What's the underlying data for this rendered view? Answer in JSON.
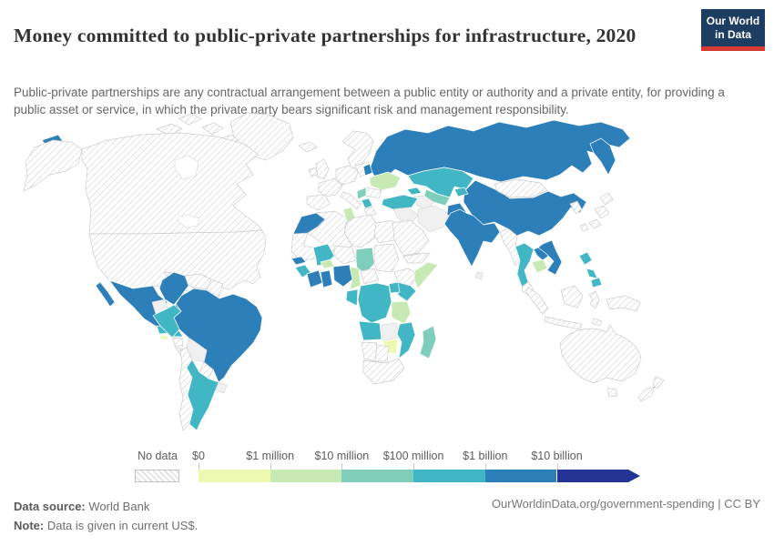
{
  "header": {
    "title": "Money committed to public-private partnerships for infrastructure, 2020",
    "subtitle": "Public-private partnerships are any contractual arrangement between a public entity or authority and a private entity, for providing a public asset or service, in which the private party bears significant risk and management responsibility.",
    "logo": {
      "line1": "Our World",
      "line2": "in Data",
      "bg_color": "#1d3d63",
      "accent_color": "#d73a33"
    }
  },
  "legend": {
    "no_data_label": "No data"
  },
  "footer": {
    "source_label": "Data source:",
    "source_value": " World Bank",
    "note_label": "Note:",
    "note_value": " Data is given in current US$.",
    "link": "OurWorldinData.org/government-spending | CC BY"
  },
  "chart_data": {
    "type": "heatmap",
    "subtype": "choropleth_world_map",
    "title": "Money committed to public-private partnerships for infrastructure, 2020",
    "unit": "current US$",
    "data_source": "World Bank",
    "note": "Data is given in current US$.",
    "legend_position": "bottom",
    "color_scale": {
      "no_data": {
        "label": "No data",
        "style": "hatched"
      },
      "stops": [
        {
          "label": "$0",
          "color": "#edf8b1"
        },
        {
          "label": "$1 million",
          "color": "#c7e9b4"
        },
        {
          "label": "$10 million",
          "color": "#7fcdbb"
        },
        {
          "label": "$100 million",
          "color": "#41b6c4"
        },
        {
          "label": "$1 billion",
          "color": "#2c7fb8"
        },
        {
          "label": "$10 billion",
          "color": "#253494"
        }
      ]
    },
    "countries": [
      {
        "id": "russia",
        "label": "Russia",
        "band": "$1 billion – $10 billion",
        "color": "#2c7fb8"
      },
      {
        "id": "china",
        "label": "China",
        "band": "$1 billion – $10 billion",
        "color": "#2c7fb8"
      },
      {
        "id": "india",
        "label": "India & Pakistan",
        "band": "$1 billion – $10 billion",
        "color": "#2c7fb8"
      },
      {
        "id": "afghanistan",
        "label": "Afghanistan",
        "band": "$1 billion – $10 billion",
        "color": "#2c7fb8"
      },
      {
        "id": "brazil",
        "label": "Brazil",
        "band": "$1 billion – $10 billion",
        "color": "#2c7fb8"
      },
      {
        "id": "colombia",
        "label": "Colombia",
        "band": "$1 billion – $10 billion",
        "color": "#2c7fb8"
      },
      {
        "id": "mexico",
        "label": "Mexico",
        "band": "$1 billion – $10 billion",
        "color": "#2c7fb8"
      },
      {
        "id": "vietnam",
        "label": "Vietnam",
        "band": "$1 billion – $10 billion",
        "color": "#2c7fb8"
      },
      {
        "id": "laos",
        "label": "Laos",
        "band": "$1 billion – $10 billion",
        "color": "#2c7fb8"
      },
      {
        "id": "belarus",
        "label": "Belarus",
        "band": "$1 billion – $10 billion",
        "color": "#2c7fb8"
      },
      {
        "id": "morocco",
        "label": "Morocco",
        "band": "$1 billion – $10 billion",
        "color": "#2c7fb8"
      },
      {
        "id": "senegal",
        "label": "Senegal",
        "band": "$1 billion – $10 billion",
        "color": "#2c7fb8"
      },
      {
        "id": "cote-divoire",
        "label": "Côte d'Ivoire",
        "band": "$1 billion – $10 billion",
        "color": "#2c7fb8"
      },
      {
        "id": "ghana",
        "label": "Ghana",
        "band": "$1 billion – $10 billion",
        "color": "#2c7fb8"
      },
      {
        "id": "nigeria",
        "label": "Nigeria",
        "band": "$1 billion – $10 billion",
        "color": "#2c7fb8"
      },
      {
        "id": "kazakhstan",
        "label": "Kazakhstan",
        "band": "$100 million – $1 billion",
        "color": "#41b6c4"
      },
      {
        "id": "turkey",
        "label": "Turkey",
        "band": "$100 million – $1 billion",
        "color": "#41b6c4"
      },
      {
        "id": "georgia",
        "label": "Georgia",
        "band": "$100 million – $1 billion",
        "color": "#41b6c4"
      },
      {
        "id": "kyrgyzstan",
        "label": "Kyrgyzstan & Tajikistan",
        "band": "$100 million – $1 billion",
        "color": "#41b6c4"
      },
      {
        "id": "thailand",
        "label": "Thailand",
        "band": "$100 million – $1 billion",
        "color": "#41b6c4"
      },
      {
        "id": "philippines",
        "label": "Philippines",
        "band": "$100 million – $1 billion",
        "color": "#41b6c4"
      },
      {
        "id": "peru",
        "label": "Peru",
        "band": "$100 million – $1 billion",
        "color": "#41b6c4"
      },
      {
        "id": "argentina",
        "label": "Argentina",
        "band": "$100 million – $1 billion",
        "color": "#41b6c4"
      },
      {
        "id": "guatemala",
        "label": "Guatemala",
        "band": "$100 million – $1 billion",
        "color": "#41b6c4"
      },
      {
        "id": "honduras",
        "label": "Honduras",
        "band": "$100 million – $1 billion",
        "color": "#41b6c4"
      },
      {
        "id": "kenya",
        "label": "Kenya",
        "band": "$100 million – $1 billion",
        "color": "#41b6c4"
      },
      {
        "id": "uganda",
        "label": "Uganda",
        "band": "$100 million – $1 billion",
        "color": "#41b6c4"
      },
      {
        "id": "dr-congo",
        "label": "Democratic Republic of Congo",
        "band": "$100 million – $1 billion",
        "color": "#41b6c4"
      },
      {
        "id": "gabon",
        "label": "Gabon & Congo",
        "band": "$100 million – $1 billion",
        "color": "#41b6c4"
      },
      {
        "id": "angola",
        "label": "Angola",
        "band": "$100 million – $1 billion",
        "color": "#41b6c4"
      },
      {
        "id": "mozambique",
        "label": "Mozambique",
        "band": "$100 million – $1 billion",
        "color": "#41b6c4"
      },
      {
        "id": "mali",
        "label": "Mali",
        "band": "$100 million – $1 billion",
        "color": "#41b6c4"
      },
      {
        "id": "guinea",
        "label": "Guinea",
        "band": "$100 million – $1 billion",
        "color": "#41b6c4"
      },
      {
        "id": "albania",
        "label": "Albania & North Macedonia",
        "band": "$100 million – $1 billion",
        "color": "#41b6c4"
      },
      {
        "id": "madagascar",
        "label": "Madagascar",
        "band": "$10 million – $100 million",
        "color": "#7fcdbb"
      },
      {
        "id": "chad",
        "label": "Chad",
        "band": "$10 million – $100 million",
        "color": "#7fcdbb"
      },
      {
        "id": "uzbekistan",
        "label": "Uzbekistan",
        "band": "$10 million – $100 million",
        "color": "#7fcdbb"
      },
      {
        "id": "serbia",
        "label": "Serbia & Croatia",
        "band": "$10 million – $100 million",
        "color": "#7fcdbb"
      },
      {
        "id": "ukraine",
        "label": "Ukraine",
        "band": "$1 million – $10 million",
        "color": "#c7e9b4"
      },
      {
        "id": "tunisia",
        "label": "Tunisia",
        "band": "$1 million – $10 million",
        "color": "#c7e9b4"
      },
      {
        "id": "cambodia",
        "label": "Cambodia",
        "band": "$1 million – $10 million",
        "color": "#c7e9b4"
      },
      {
        "id": "tanzania",
        "label": "Tanzania",
        "band": "$1 million – $10 million",
        "color": "#c7e9b4"
      },
      {
        "id": "somalia",
        "label": "Somalia",
        "band": "$1 million – $10 million",
        "color": "#c7e9b4"
      },
      {
        "id": "cameroon",
        "label": "Cameroon",
        "band": "$1 million – $10 million",
        "color": "#c7e9b4"
      },
      {
        "id": "burkina-faso",
        "label": "Burkina Faso",
        "band": "$1 million – $10 million",
        "color": "#c7e9b4"
      },
      {
        "id": "zimbabwe",
        "label": "Zimbabwe",
        "band": "$0 – $1 million",
        "color": "#edf8b1"
      },
      {
        "id": "el-salvador",
        "label": "El Salvador",
        "band": "$0 – $1 million",
        "color": "#edf8b1"
      },
      {
        "id": "united-states",
        "label": "United States",
        "band": "No data",
        "color": "hatch"
      },
      {
        "id": "canada",
        "label": "Canada",
        "band": "No data",
        "color": "hatch"
      },
      {
        "id": "greenland",
        "label": "Greenland",
        "band": "No data",
        "color": "hatch"
      },
      {
        "id": "cuba",
        "label": "Cuba",
        "band": "No data",
        "color": "hatch"
      },
      {
        "id": "hispaniola",
        "label": "Haiti & Dominican Republic",
        "band": "No data",
        "color": "hatch"
      },
      {
        "id": "nicaragua",
        "label": "Nicaragua",
        "band": "No data",
        "color": "hatch"
      },
      {
        "id": "panama",
        "label": "Panama",
        "band": "No data",
        "color": "hatch"
      },
      {
        "id": "venezuela",
        "label": "Venezuela",
        "band": "No data",
        "color": "hatch"
      },
      {
        "id": "guyana",
        "label": "Guyanas",
        "band": "No data",
        "color": "hatch"
      },
      {
        "id": "paraguay",
        "label": "Paraguay",
        "band": "No data",
        "color": "hatch"
      },
      {
        "id": "chile",
        "label": "Chile",
        "band": "No data",
        "color": "hatch"
      },
      {
        "id": "iceland",
        "label": "Iceland",
        "band": "No data",
        "color": "hatch"
      },
      {
        "id": "scandinavia",
        "label": "Norway, Sweden & Finland",
        "band": "No data",
        "color": "hatch"
      },
      {
        "id": "united-kingdom",
        "label": "United Kingdom",
        "band": "No data",
        "color": "hatch"
      },
      {
        "id": "ireland",
        "label": "Ireland",
        "band": "No data",
        "color": "hatch"
      },
      {
        "id": "france",
        "label": "France",
        "band": "No data",
        "color": "hatch"
      },
      {
        "id": "iberia",
        "label": "Spain & Portugal",
        "band": "No data",
        "color": "hatch"
      },
      {
        "id": "germany",
        "label": "Germany & Central Europe",
        "band": "No data",
        "color": "hatch"
      },
      {
        "id": "italy",
        "label": "Italy",
        "band": "No data",
        "color": "hatch"
      },
      {
        "id": "poland",
        "label": "Poland & Baltics",
        "band": "No data",
        "color": "hatch"
      },
      {
        "id": "romania",
        "label": "Romania",
        "band": "No data",
        "color": "hatch"
      },
      {
        "id": "greece",
        "label": "Greece",
        "band": "No data",
        "color": "hatch"
      },
      {
        "id": "mongolia",
        "label": "Mongolia",
        "band": "No data",
        "color": "hatch"
      },
      {
        "id": "japan",
        "label": "Japan",
        "band": "No data",
        "color": "hatch"
      },
      {
        "id": "south-korea",
        "label": "South Korea",
        "band": "No data",
        "color": "hatch"
      },
      {
        "id": "taiwan",
        "label": "Taiwan",
        "band": "No data",
        "color": "hatch"
      },
      {
        "id": "myanmar",
        "label": "Myanmar",
        "band": "No data",
        "color": "hatch"
      },
      {
        "id": "malaysia",
        "label": "Malaysia",
        "band": "No data",
        "color": "hatch"
      },
      {
        "id": "indonesia",
        "label": "Indonesia",
        "band": "No data",
        "color": "hatch"
      },
      {
        "id": "new-guinea",
        "label": "New Guinea",
        "band": "No data",
        "color": "hatch"
      },
      {
        "id": "australia",
        "label": "Australia",
        "band": "No data",
        "color": "hatch"
      },
      {
        "id": "new-zealand",
        "label": "New Zealand",
        "band": "No data",
        "color": "hatch"
      },
      {
        "id": "saudi-arabia",
        "label": "Saudi Arabia",
        "band": "No data",
        "color": "hatch"
      },
      {
        "id": "yemen",
        "label": "Yemen & Oman",
        "band": "No data",
        "color": "hatch"
      },
      {
        "id": "algeria",
        "label": "Algeria",
        "band": "No data",
        "color": "hatch"
      },
      {
        "id": "libya",
        "label": "Libya",
        "band": "No data",
        "color": "hatch"
      },
      {
        "id": "egypt",
        "label": "Egypt",
        "band": "No data",
        "color": "hatch"
      },
      {
        "id": "mauritania",
        "label": "Mauritania & Western Sahara",
        "band": "No data",
        "color": "hatch"
      },
      {
        "id": "niger",
        "label": "Niger",
        "band": "No data",
        "color": "hatch"
      },
      {
        "id": "sudan",
        "label": "Sudan",
        "band": "No data",
        "color": "hatch"
      },
      {
        "id": "car",
        "label": "Central African Republic",
        "band": "No data",
        "color": "hatch"
      },
      {
        "id": "ethiopia",
        "label": "Ethiopia",
        "band": "No data",
        "color": "hatch"
      },
      {
        "id": "namibia",
        "label": "Namibia",
        "band": "No data",
        "color": "hatch"
      },
      {
        "id": "botswana",
        "label": "Botswana",
        "band": "No data",
        "color": "hatch"
      },
      {
        "id": "south-africa",
        "label": "South Africa",
        "band": "No data",
        "color": "hatch"
      },
      {
        "id": "ecuador",
        "label": "Ecuador",
        "band": "No data",
        "color": "#f0f0f0"
      },
      {
        "id": "bolivia",
        "label": "Bolivia",
        "band": "No data",
        "color": "#f0f0f0"
      },
      {
        "id": "uruguay",
        "label": "Uruguay",
        "band": "No data",
        "color": "#f0f0f0"
      },
      {
        "id": "zambia",
        "label": "Zambia",
        "band": "No data",
        "color": "#f0f0f0"
      },
      {
        "id": "iran",
        "label": "Iran",
        "band": "No data",
        "color": "#f0f0f0"
      },
      {
        "id": "iraq",
        "label": "Iraq & Syria",
        "band": "No data",
        "color": "#f0f0f0"
      },
      {
        "id": "turkmenistan",
        "label": "Turkmenistan",
        "band": "No data",
        "color": "#f0f0f0"
      },
      {
        "id": "costa-rica",
        "label": "Costa Rica",
        "band": "No data",
        "color": "#f0f0f0"
      },
      {
        "id": "sri-lanka",
        "label": "Sri Lanka",
        "band": "No data",
        "color": "#f0f0f0"
      }
    ]
  }
}
